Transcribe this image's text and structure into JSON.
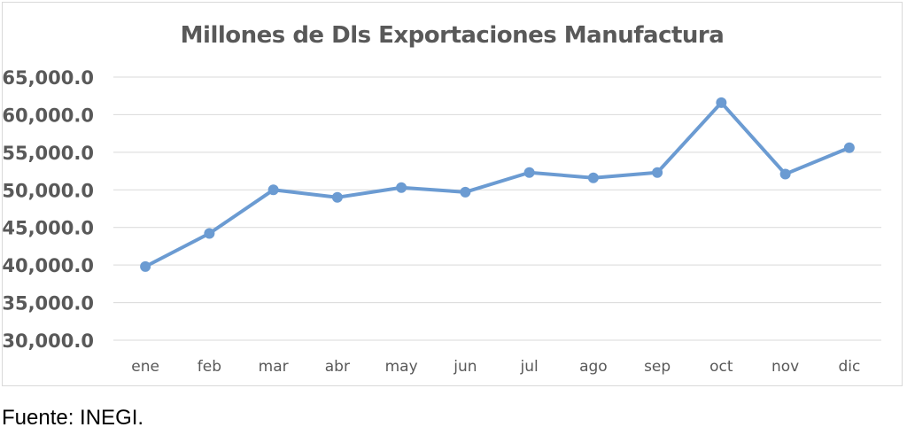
{
  "source_note": "Fuente: INEGI.",
  "chart_data": {
    "type": "line",
    "title": "Millones de Dls Exportaciones Manufactura",
    "xlabel": "",
    "ylabel": "",
    "categories": [
      "ene",
      "feb",
      "mar",
      "abr",
      "may",
      "jun",
      "jul",
      "ago",
      "sep",
      "oct",
      "nov",
      "dic"
    ],
    "series": [
      {
        "values": [
          39800,
          44200,
          50000,
          49000,
          50300,
          49700,
          52300,
          51600,
          52300,
          61600,
          52100,
          55600
        ],
        "color": "#6b9bd2"
      }
    ],
    "ylim": [
      30000,
      65000
    ],
    "yticks": [
      "30,000.0",
      "35,000.0",
      "40,000.0",
      "45,000.0",
      "50,000.0",
      "55,000.0",
      "60,000.0",
      "65,000.0"
    ],
    "grid": true,
    "legend": "none",
    "colors": {
      "gridline": "#d9d9d9",
      "tick_label": "#595959",
      "title": "#595959"
    }
  }
}
